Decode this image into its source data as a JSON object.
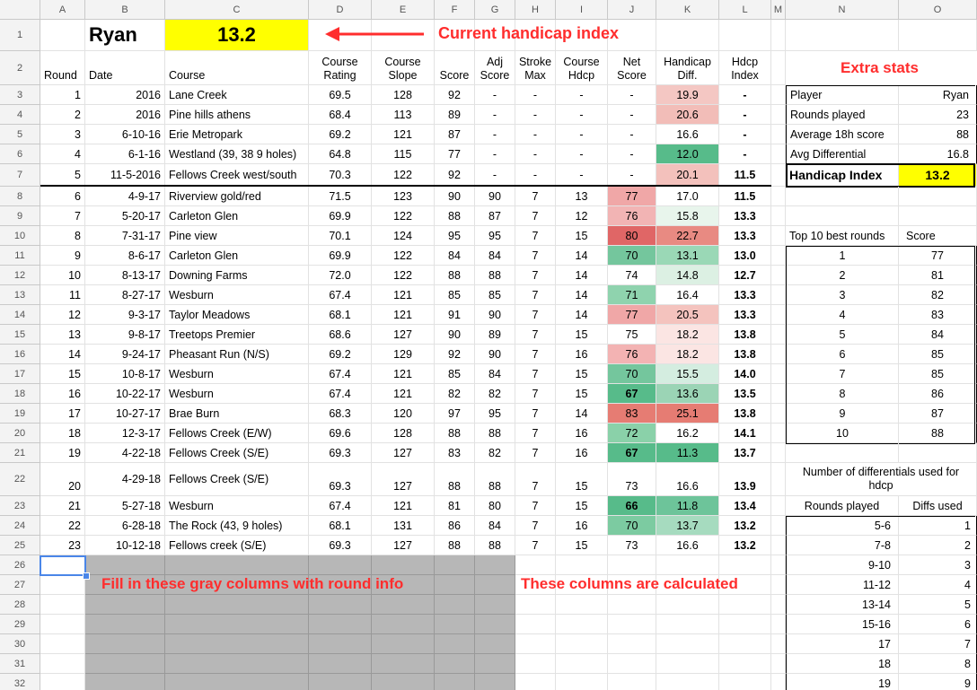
{
  "columns": [
    "A",
    "B",
    "C",
    "D",
    "E",
    "F",
    "G",
    "H",
    "I",
    "J",
    "K",
    "L",
    "M",
    "N",
    "O"
  ],
  "rows": [
    "1",
    "2",
    "3",
    "4",
    "5",
    "6",
    "7",
    "8",
    "9",
    "10",
    "11",
    "12",
    "13",
    "14",
    "15",
    "16",
    "17",
    "18",
    "19",
    "20",
    "21",
    "22",
    "23",
    "24",
    "25",
    "26",
    "27",
    "28",
    "29",
    "30",
    "31",
    "32"
  ],
  "player_name": "Ryan",
  "current_index": "13.2",
  "annotations": {
    "current_index": "Current handicap index",
    "extra_stats": "Extra stats",
    "fill_in": "Fill in these gray columns with round info",
    "calculated": "These columns are calculated"
  },
  "headers": {
    "round": "Round",
    "date": "Date",
    "course": "Course",
    "course_rating": "Course Rating",
    "course_slope": "Course Slope",
    "score": "Score",
    "adj_score": "Adj Score",
    "stroke_max": "Stroke Max",
    "course_hdcp": "Course Hdcp",
    "net_score": "Net Score",
    "handicap_diff": "Handicap Diff.",
    "hdcp_index": "Hdcp Index"
  },
  "rounds": [
    {
      "round": "1",
      "date": "2016",
      "course": "Lane Creek",
      "rating": "69.5",
      "slope": "128",
      "score": "92",
      "adj": "-",
      "max": "-",
      "chdcp": "-",
      "net": "-",
      "diff": "19.9",
      "index": "-"
    },
    {
      "round": "2",
      "date": "2016",
      "course": "Pine hills athens",
      "rating": "68.4",
      "slope": "113",
      "score": "89",
      "adj": "-",
      "max": "-",
      "chdcp": "-",
      "net": "-",
      "diff": "20.6",
      "index": "-"
    },
    {
      "round": "3",
      "date": "6-10-16",
      "course": "Erie Metropark",
      "rating": "69.2",
      "slope": "121",
      "score": "87",
      "adj": "-",
      "max": "-",
      "chdcp": "-",
      "net": "-",
      "diff": "16.6",
      "index": "-"
    },
    {
      "round": "4",
      "date": "6-1-16",
      "course": "Westland (39, 38 9 holes)",
      "rating": "64.8",
      "slope": "115",
      "score": "77",
      "adj": "-",
      "max": "-",
      "chdcp": "-",
      "net": "-",
      "diff": "12.0",
      "index": "-"
    },
    {
      "round": "5",
      "date": "11-5-2016",
      "course": "Fellows Creek west/south",
      "rating": "70.3",
      "slope": "122",
      "score": "92",
      "adj": "-",
      "max": "-",
      "chdcp": "-",
      "net": "-",
      "diff": "20.1",
      "index": "11.5"
    },
    {
      "round": "6",
      "date": "4-9-17",
      "course": "Riverview gold/red",
      "rating": "71.5",
      "slope": "123",
      "score": "90",
      "adj": "90",
      "max": "7",
      "chdcp": "13",
      "net": "77",
      "diff": "17.0",
      "index": "11.5"
    },
    {
      "round": "7",
      "date": "5-20-17",
      "course": "Carleton Glen",
      "rating": "69.9",
      "slope": "122",
      "score": "88",
      "adj": "87",
      "max": "7",
      "chdcp": "12",
      "net": "76",
      "diff": "15.8",
      "index": "13.3"
    },
    {
      "round": "8",
      "date": "7-31-17",
      "course": "Pine view",
      "rating": "70.1",
      "slope": "124",
      "score": "95",
      "adj": "95",
      "max": "7",
      "chdcp": "15",
      "net": "80",
      "diff": "22.7",
      "index": "13.3"
    },
    {
      "round": "9",
      "date": "8-6-17",
      "course": "Carleton Glen",
      "rating": "69.9",
      "slope": "122",
      "score": "84",
      "adj": "84",
      "max": "7",
      "chdcp": "14",
      "net": "70",
      "diff": "13.1",
      "index": "13.0"
    },
    {
      "round": "10",
      "date": "8-13-17",
      "course": "Downing Farms",
      "rating": "72.0",
      "slope": "122",
      "score": "88",
      "adj": "88",
      "max": "7",
      "chdcp": "14",
      "net": "74",
      "diff": "14.8",
      "index": "12.7"
    },
    {
      "round": "11",
      "date": "8-27-17",
      "course": "Wesburn",
      "rating": "67.4",
      "slope": "121",
      "score": "85",
      "adj": "85",
      "max": "7",
      "chdcp": "14",
      "net": "71",
      "diff": "16.4",
      "index": "13.3"
    },
    {
      "round": "12",
      "date": "9-3-17",
      "course": "Taylor Meadows",
      "rating": "68.1",
      "slope": "121",
      "score": "91",
      "adj": "90",
      "max": "7",
      "chdcp": "14",
      "net": "77",
      "diff": "20.5",
      "index": "13.3"
    },
    {
      "round": "13",
      "date": "9-8-17",
      "course": "Treetops Premier",
      "rating": "68.6",
      "slope": "127",
      "score": "90",
      "adj": "89",
      "max": "7",
      "chdcp": "15",
      "net": "75",
      "diff": "18.2",
      "index": "13.8"
    },
    {
      "round": "14",
      "date": "9-24-17",
      "course": "Pheasant Run (N/S)",
      "rating": "69.2",
      "slope": "129",
      "score": "92",
      "adj": "90",
      "max": "7",
      "chdcp": "16",
      "net": "76",
      "diff": "18.2",
      "index": "13.8"
    },
    {
      "round": "15",
      "date": "10-8-17",
      "course": "Wesburn",
      "rating": "67.4",
      "slope": "121",
      "score": "85",
      "adj": "84",
      "max": "7",
      "chdcp": "15",
      "net": "70",
      "diff": "15.5",
      "index": "14.0"
    },
    {
      "round": "16",
      "date": "10-22-17",
      "course": "Wesburn",
      "rating": "67.4",
      "slope": "121",
      "score": "82",
      "adj": "82",
      "max": "7",
      "chdcp": "15",
      "net": "67",
      "diff": "13.6",
      "index": "13.5"
    },
    {
      "round": "17",
      "date": "10-27-17",
      "course": "Brae Burn",
      "rating": "68.3",
      "slope": "120",
      "score": "97",
      "adj": "95",
      "max": "7",
      "chdcp": "14",
      "net": "83",
      "diff": "25.1",
      "index": "13.8"
    },
    {
      "round": "18",
      "date": "12-3-17",
      "course": "Fellows Creek (E/W)",
      "rating": "69.6",
      "slope": "128",
      "score": "88",
      "adj": "88",
      "max": "7",
      "chdcp": "16",
      "net": "72",
      "diff": "16.2",
      "index": "14.1"
    },
    {
      "round": "19",
      "date": "4-22-18",
      "course": "Fellows Creek (S/E)",
      "rating": "69.3",
      "slope": "127",
      "score": "83",
      "adj": "82",
      "max": "7",
      "chdcp": "16",
      "net": "67",
      "diff": "11.3",
      "index": "13.7"
    },
    {
      "round": "20",
      "date": "4-29-18",
      "course": "Fellows Creek (S/E)",
      "rating": "69.3",
      "slope": "127",
      "score": "88",
      "adj": "88",
      "max": "7",
      "chdcp": "15",
      "net": "73",
      "diff": "16.6",
      "index": "13.9"
    },
    {
      "round": "21",
      "date": "5-27-18",
      "course": "Wesburn",
      "rating": "67.4",
      "slope": "121",
      "score": "81",
      "adj": "80",
      "max": "7",
      "chdcp": "15",
      "net": "66",
      "diff": "11.8",
      "index": "13.4"
    },
    {
      "round": "22",
      "date": "6-28-18",
      "course": "The Rock (43, 9 holes)",
      "rating": "68.1",
      "slope": "131",
      "score": "86",
      "adj": "84",
      "max": "7",
      "chdcp": "16",
      "net": "70",
      "diff": "13.7",
      "index": "13.2"
    },
    {
      "round": "23",
      "date": "10-12-18",
      "course": "Fellows creek (S/E)",
      "rating": "69.3",
      "slope": "127",
      "score": "88",
      "adj": "88",
      "max": "7",
      "chdcp": "15",
      "net": "73",
      "diff": "16.6",
      "index": "13.2"
    }
  ],
  "net_colors": [
    "",
    "",
    "",
    "",
    "",
    "#f0a7a7",
    "#f2b4b4",
    "#e06666",
    "#74c69d",
    "",
    "#8fd3ae",
    "#f0a7a7",
    "",
    "#f3b3b3",
    "#74c69d",
    "#57bb8a",
    "#e67c73",
    "#8ad1a9",
    "#57bb8a",
    "",
    "#57bb8a",
    "#7ccba1",
    ""
  ],
  "diff_colors": [
    "#f4c7c3",
    "#f2bdb8",
    "#ffffff",
    "#57bb8a",
    "#f3c1bc",
    "#ffffff",
    "#e8f5ec",
    "#e88a82",
    "#9ad8b6",
    "#dcf0e3",
    "#ffffff",
    "#f4c3be",
    "#fbe5e3",
    "#fbe5e3",
    "#d4ede0",
    "#9bd4b5",
    "#e67c73",
    "#ffffff",
    "#57bb8a",
    "#ffffff",
    "#6dc49a",
    "#a6dbbf",
    "#ffffff"
  ],
  "net_bold": [
    "67",
    "66"
  ],
  "stats": {
    "rows": [
      {
        "label": "Player",
        "value": "Ryan"
      },
      {
        "label": "Rounds played",
        "value": "23"
      },
      {
        "label": "Average 18h score",
        "value": "88"
      },
      {
        "label": "Avg Differential",
        "value": "16.8"
      }
    ],
    "index_label": "Handicap Index",
    "index_value": "13.2"
  },
  "top10": {
    "header_label": "Top 10 best rounds",
    "header_score": "Score",
    "rows": [
      {
        "rank": "1",
        "score": "77"
      },
      {
        "rank": "2",
        "score": "81"
      },
      {
        "rank": "3",
        "score": "82"
      },
      {
        "rank": "4",
        "score": "83"
      },
      {
        "rank": "5",
        "score": "84"
      },
      {
        "rank": "6",
        "score": "85"
      },
      {
        "rank": "7",
        "score": "85"
      },
      {
        "rank": "8",
        "score": "86"
      },
      {
        "rank": "9",
        "score": "87"
      },
      {
        "rank": "10",
        "score": "88"
      }
    ]
  },
  "diffs_table": {
    "title": "Number of differentials used for hdcp",
    "header_rounds": "Rounds played",
    "header_diffs": "Diffs used",
    "rows": [
      {
        "rounds": "5-6",
        "diffs": "1"
      },
      {
        "rounds": "7-8",
        "diffs": "2"
      },
      {
        "rounds": "9-10",
        "diffs": "3"
      },
      {
        "rounds": "11-12",
        "diffs": "4"
      },
      {
        "rounds": "13-14",
        "diffs": "5"
      },
      {
        "rounds": "15-16",
        "diffs": "6"
      },
      {
        "rounds": "17",
        "diffs": "7"
      },
      {
        "rounds": "18",
        "diffs": "8"
      },
      {
        "rounds": "19",
        "diffs": "9"
      }
    ]
  },
  "colors": {
    "highlight_yellow": "#ffff00",
    "annotation_red": "#ff2d2d",
    "gray_input": "#b7b7b7",
    "selection_blue": "#4a86e8"
  }
}
